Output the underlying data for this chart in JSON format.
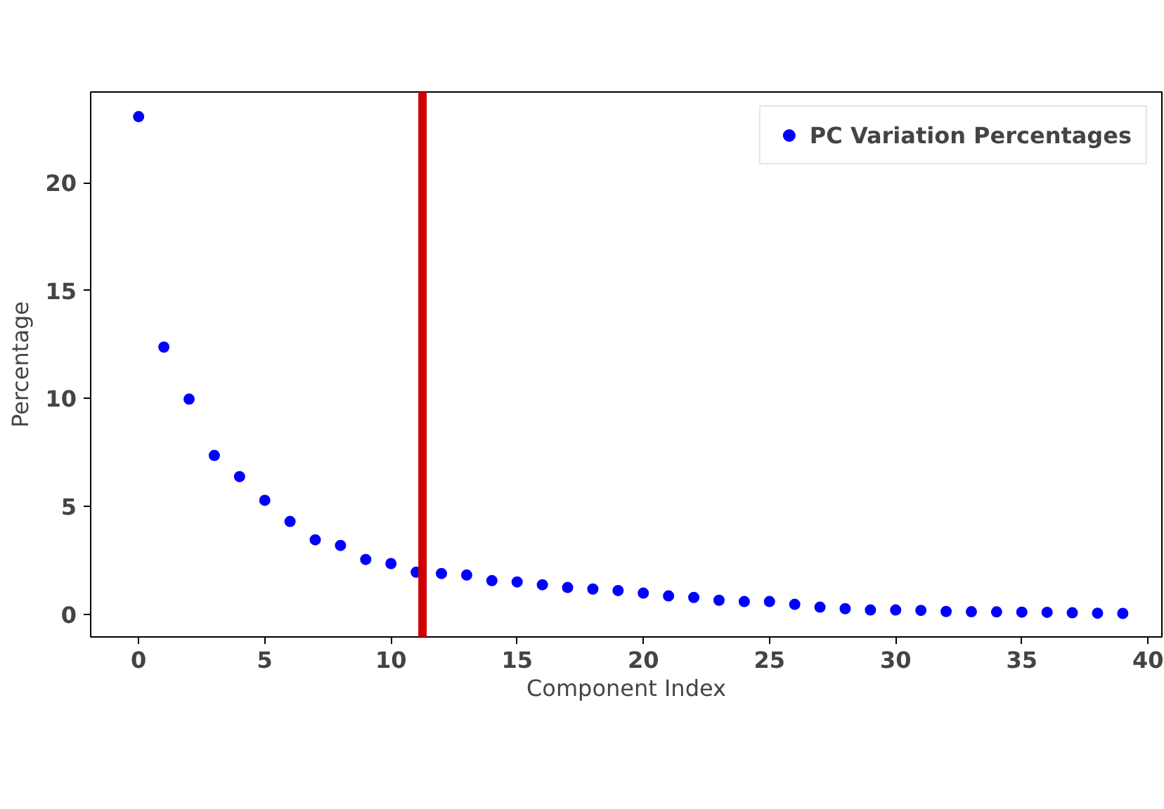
{
  "chart_data": {
    "type": "scatter",
    "xlabel": "Component Index",
    "ylabel": "Percentage",
    "x": [
      0,
      1,
      2,
      3,
      4,
      5,
      6,
      7,
      8,
      9,
      10,
      11,
      12,
      13,
      14,
      15,
      16,
      17,
      18,
      19,
      20,
      21,
      22,
      23,
      24,
      25,
      26,
      27,
      28,
      29,
      30,
      31,
      32,
      33,
      34,
      35,
      36,
      37,
      38,
      39
    ],
    "series": [
      {
        "name": "PC Variation Percentages",
        "color": "#0000ff",
        "values": [
          23.06,
          12.38,
          9.97,
          7.36,
          6.38,
          5.28,
          4.3,
          3.45,
          3.19,
          2.54,
          2.35,
          1.95,
          1.89,
          1.82,
          1.56,
          1.5,
          1.37,
          1.24,
          1.17,
          1.1,
          0.98,
          0.85,
          0.78,
          0.65,
          0.59,
          0.59,
          0.46,
          0.33,
          0.26,
          0.2,
          0.2,
          0.18,
          0.13,
          0.12,
          0.11,
          0.1,
          0.09,
          0.07,
          0.05,
          0.04
        ]
      }
    ],
    "xlim": [
      -1.9,
      40.55
    ],
    "ylim": [
      -1.05,
      24.2
    ],
    "xticks": [
      0,
      5,
      10,
      15,
      20,
      25,
      30,
      35,
      40
    ],
    "yticks": [
      0,
      5,
      10,
      15,
      20
    ],
    "ref_lines": [
      {
        "axis": "x",
        "value": 11.25,
        "color": "#cc0000"
      }
    ],
    "marker": "circle",
    "grid": false,
    "legend": "top right"
  }
}
